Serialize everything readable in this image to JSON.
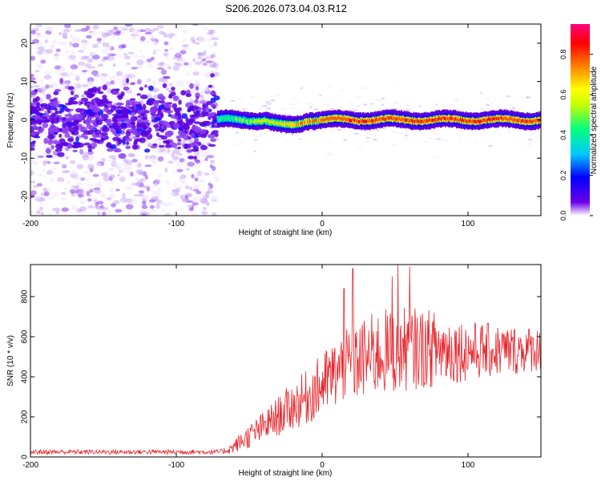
{
  "figure": {
    "title": "S206.2026.073.04.03.R12"
  },
  "chart_data": [
    {
      "type": "heatmap",
      "xlabel": "Height of straight line (km)",
      "ylabel": "Frequency (Hz)",
      "xlim": [
        -200,
        150
      ],
      "ylim": [
        -25,
        25
      ],
      "xticks": [
        -200,
        -100,
        0,
        100
      ],
      "yticks": [
        -20,
        -10,
        0,
        10,
        20
      ],
      "colorbar": {
        "label": "Normalized spectral amplitude",
        "range": [
          0,
          0.95
        ],
        "ticks": [
          0.0,
          0.2,
          0.4,
          0.6,
          0.8
        ],
        "colormap": [
          "#ffffff",
          "#6a00e8",
          "#0000ff",
          "#00c8ff",
          "#00ff80",
          "#c8ff00",
          "#ffff00",
          "#ff8000",
          "#ff0000",
          "#ff0080"
        ]
      },
      "regions": [
        {
          "name": "",
          "x": [
            -200,
            -72
          ],
          "freq_center": 0,
          "core_spread_hz": 4,
          "noise": "scattered over full band",
          "typical_amplitude": 0.1
        },
        {
          "name": "",
          "x": [
            -72,
            150
          ],
          "freq_center": 0,
          "core_spread_hz": 1.5,
          "typical_amplitude": 0.85
        },
        {
          "name": "",
          "x": [
            -40,
            -10
          ],
          "freq_center": -1.5
        }
      ]
    },
    {
      "type": "line",
      "xlabel": "Height of straight line (km)",
      "ylabel": "SNR (10 * v/v)",
      "xlim": [
        -200,
        150
      ],
      "ylim": [
        0,
        960
      ],
      "xticks": [
        -200,
        -100,
        0,
        100
      ],
      "yticks": [
        0,
        200,
        400,
        600,
        800
      ],
      "line_color": "#e8232a",
      "envelope": [
        {
          "x": -200,
          "mean": 25,
          "spread": 12
        },
        {
          "x": -70,
          "mean": 25,
          "spread": 12
        },
        {
          "x": -63,
          "mean": 40,
          "spread": 25
        },
        {
          "x": -55,
          "mean": 80,
          "spread": 50
        },
        {
          "x": -40,
          "mean": 150,
          "spread": 80
        },
        {
          "x": -25,
          "mean": 230,
          "spread": 110
        },
        {
          "x": -10,
          "mean": 300,
          "spread": 140
        },
        {
          "x": 0,
          "mean": 360,
          "spread": 160
        },
        {
          "x": 10,
          "mean": 420,
          "spread": 180
        },
        {
          "x": 25,
          "mean": 480,
          "spread": 200
        },
        {
          "x": 40,
          "mean": 520,
          "spread": 220
        },
        {
          "x": 60,
          "mean": 540,
          "spread": 210
        },
        {
          "x": 80,
          "mean": 540,
          "spread": 190
        },
        {
          "x": 100,
          "mean": 530,
          "spread": 150
        },
        {
          "x": 125,
          "mean": 530,
          "spread": 130
        },
        {
          "x": 150,
          "mean": 540,
          "spread": 110
        }
      ],
      "peaks": [
        {
          "x": 15,
          "y": 840
        },
        {
          "x": 21,
          "y": 940
        },
        {
          "x": 48,
          "y": 900
        },
        {
          "x": 52,
          "y": 960
        },
        {
          "x": 60,
          "y": 950
        }
      ]
    }
  ]
}
